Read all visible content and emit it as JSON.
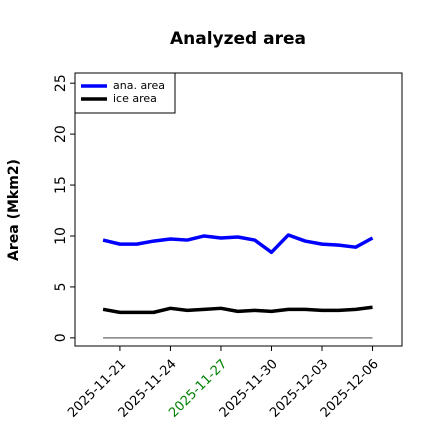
{
  "chart_data": {
    "type": "line",
    "title": "Analyzed area",
    "y_label": "Area (Mkm2)",
    "x": [
      "2025-11-20",
      "2025-11-21",
      "2025-11-22",
      "2025-11-23",
      "2025-11-24",
      "2025-11-25",
      "2025-11-26",
      "2025-11-27",
      "2025-11-28",
      "2025-11-29",
      "2025-11-30",
      "2025-12-01",
      "2025-12-02",
      "2025-12-03",
      "2025-12-04",
      "2025-12-05",
      "2025-12-06"
    ],
    "series": [
      {
        "name": "ana. area",
        "color": "#0000ff",
        "values": [
          9.6,
          9.2,
          9.2,
          9.5,
          9.7,
          9.6,
          10.0,
          9.8,
          9.9,
          9.6,
          8.4,
          10.1,
          9.5,
          9.2,
          9.1,
          8.9,
          9.8
        ]
      },
      {
        "name": "ice area",
        "color": "#000000",
        "values": [
          2.8,
          2.5,
          2.5,
          2.5,
          2.9,
          2.7,
          2.8,
          2.9,
          2.6,
          2.7,
          2.6,
          2.8,
          2.8,
          2.7,
          2.7,
          2.8,
          3.0
        ]
      }
    ],
    "hline": {
      "value": 0,
      "color": "#808080"
    },
    "xlim": [
      "2025-11-18T08:00",
      "2025-12-07T18:00"
    ],
    "xticks": [
      "2025-11-21",
      "2025-11-24",
      "2025-11-27",
      "2025-11-30",
      "2025-12-03",
      "2025-12-06"
    ],
    "xtick_colors": [
      "#000000",
      "#000000",
      "#008000",
      "#000000",
      "#000000",
      "#000000"
    ],
    "ylim": [
      -0.8,
      26
    ],
    "yticks": [
      0,
      5,
      10,
      15,
      20,
      25
    ],
    "legend": "upper left"
  }
}
